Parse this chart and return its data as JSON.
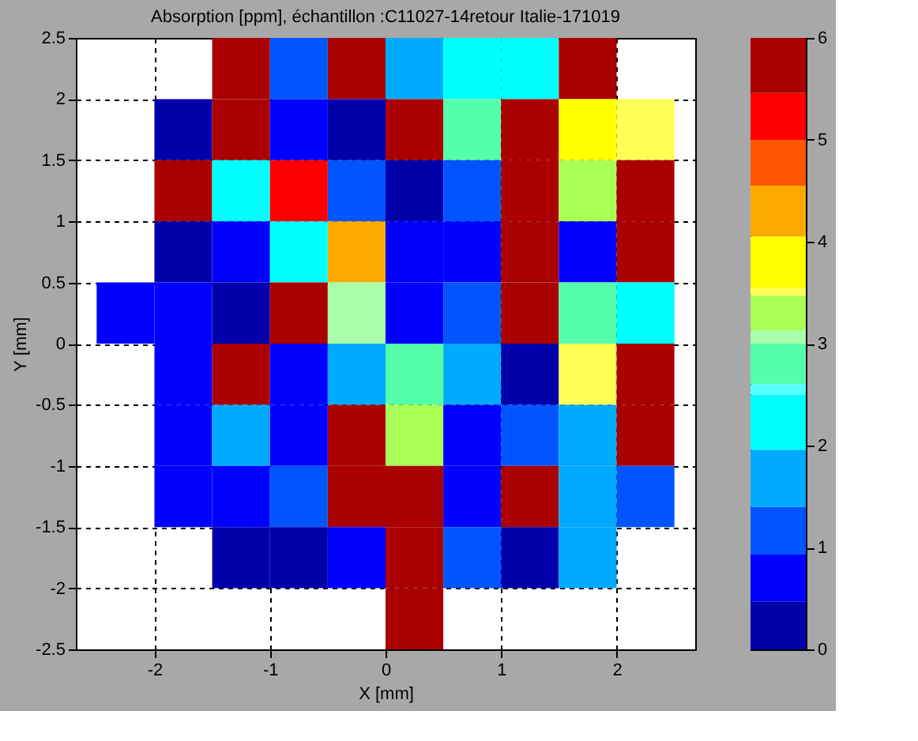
{
  "chart_data": {
    "type": "heatmap",
    "title": "Absorption [ppm], échantillon :C11027-14retour Italie-171019",
    "xlabel": "X [mm]",
    "ylabel": "Y [mm]",
    "x": [
      -2.25,
      -1.75,
      -1.25,
      -0.75,
      -0.25,
      0.25,
      0.75,
      1.25,
      1.75,
      2.25
    ],
    "y": [
      2.25,
      1.75,
      1.25,
      0.75,
      0.25,
      -0.25,
      -0.75,
      -1.25,
      -1.75,
      -2.25
    ],
    "cells": [
      [
        null,
        null,
        5.8,
        1.15,
        5.8,
        1.7,
        2.2,
        2.2,
        5.8,
        null
      ],
      [
        null,
        0.25,
        5.8,
        0.7,
        0.25,
        5.8,
        2.8,
        5.8,
        3.8,
        3.5
      ],
      [
        null,
        5.8,
        2.2,
        5.2,
        1.15,
        0.25,
        1.15,
        5.8,
        3.3,
        5.8
      ],
      [
        null,
        0.25,
        0.7,
        2.2,
        4.3,
        0.7,
        0.7,
        5.8,
        0.7,
        5.8
      ],
      [
        0.7,
        0.7,
        0.25,
        5.8,
        3.05,
        0.7,
        1.15,
        5.8,
        2.8,
        2.2
      ],
      [
        null,
        0.7,
        5.8,
        0.7,
        1.7,
        2.8,
        1.7,
        0.25,
        3.5,
        5.8
      ],
      [
        null,
        0.7,
        1.7,
        0.7,
        5.8,
        3.3,
        0.7,
        1.15,
        1.7,
        5.8
      ],
      [
        null,
        0.7,
        0.7,
        1.15,
        5.8,
        5.8,
        0.7,
        5.8,
        1.7,
        1.15
      ],
      [
        null,
        null,
        0.25,
        0.25,
        0.7,
        5.8,
        1.15,
        0.25,
        1.7,
        null
      ],
      [
        null,
        null,
        null,
        null,
        null,
        5.8,
        null,
        null,
        null,
        null
      ]
    ],
    "xlim": [
      -2.68,
      2.68
    ],
    "ylim": [
      -2.5,
      2.5
    ],
    "xticks": [
      -2,
      -1,
      0,
      1,
      2
    ],
    "yticks": [
      -2.5,
      -2,
      -1.5,
      -1,
      -0.5,
      0,
      0.5,
      1,
      1.5,
      2,
      2.5
    ],
    "clim": [
      0,
      6
    ],
    "cticks": [
      0,
      1,
      2,
      3,
      4,
      5,
      6
    ],
    "grid": true
  }
}
